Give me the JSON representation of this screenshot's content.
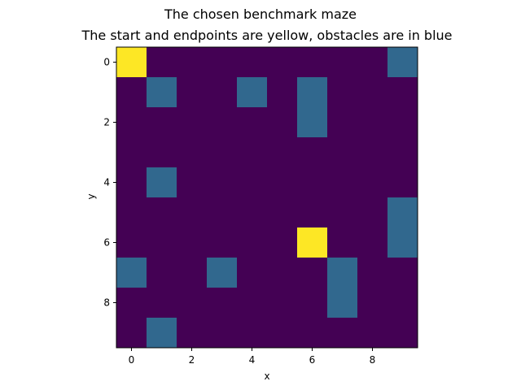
{
  "chart_data": {
    "type": "heatmap",
    "suptitle": "The chosen benchmark maze",
    "title": "The start and endpoints are yellow, obstacles are in blue",
    "xlabel": "x",
    "ylabel": "y",
    "rows": 10,
    "cols": 10,
    "xlim": [
      -0.5,
      9.5
    ],
    "ylim": [
      9.5,
      -0.5
    ],
    "xticks": [
      0,
      2,
      4,
      6,
      8
    ],
    "yticks": [
      0,
      2,
      4,
      6,
      8
    ],
    "colors": {
      "empty": "#440154",
      "obstacle": "#31688e",
      "endpoint": "#fde725"
    },
    "values": [
      [
        2,
        0,
        0,
        0,
        0,
        0,
        0,
        0,
        0,
        1
      ],
      [
        0,
        1,
        0,
        0,
        1,
        0,
        1,
        0,
        0,
        0
      ],
      [
        0,
        0,
        0,
        0,
        0,
        0,
        1,
        0,
        0,
        0
      ],
      [
        0,
        0,
        0,
        0,
        0,
        0,
        0,
        0,
        0,
        0
      ],
      [
        0,
        1,
        0,
        0,
        0,
        0,
        0,
        0,
        0,
        0
      ],
      [
        0,
        0,
        0,
        0,
        0,
        0,
        0,
        0,
        0,
        1
      ],
      [
        0,
        0,
        0,
        0,
        0,
        0,
        2,
        0,
        0,
        1
      ],
      [
        1,
        0,
        0,
        1,
        0,
        0,
        0,
        1,
        0,
        0
      ],
      [
        0,
        0,
        0,
        0,
        0,
        0,
        0,
        1,
        0,
        0
      ],
      [
        0,
        1,
        0,
        0,
        0,
        0,
        0,
        0,
        0,
        0
      ]
    ]
  }
}
